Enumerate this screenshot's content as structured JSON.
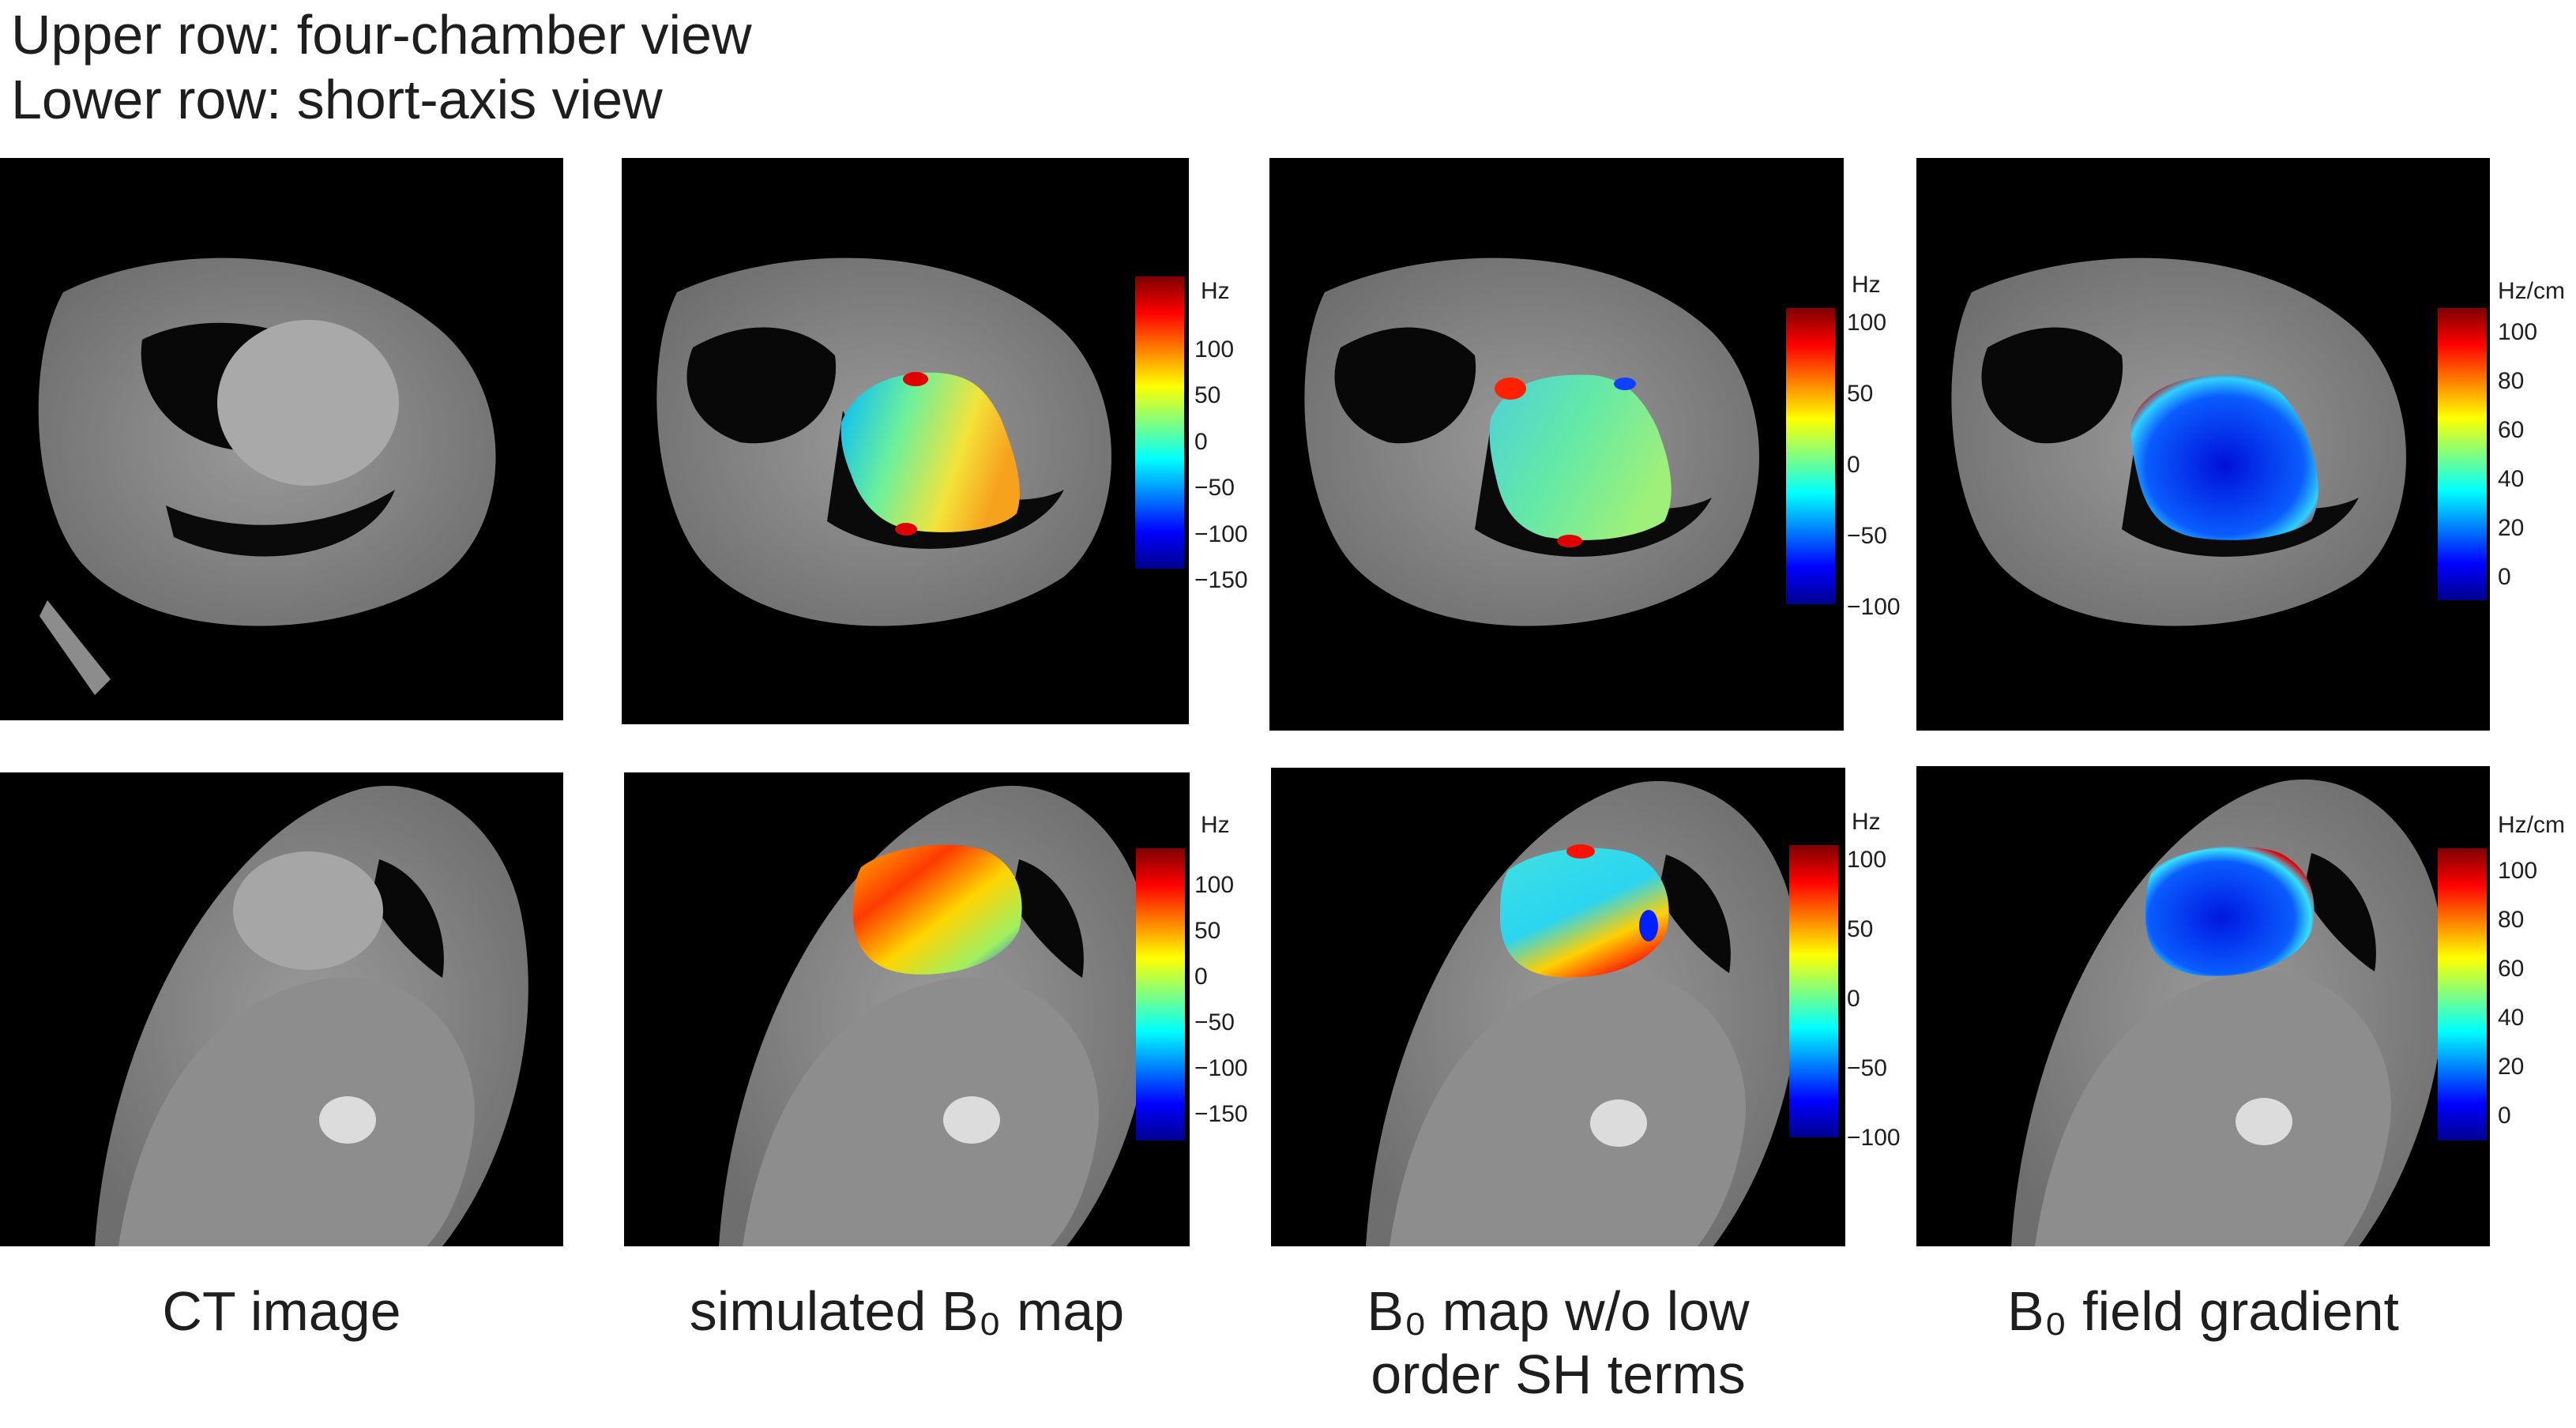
{
  "header": {
    "line1": "Upper row: four-chamber view",
    "line2": "Lower row: short-axis view"
  },
  "columns": [
    {
      "label_line1": "CT image",
      "label_line2": ""
    },
    {
      "label_line1": "simulated B₀ map",
      "label_line2": ""
    },
    {
      "label_line1": "B₀ map w/o low",
      "label_line2": "order SH terms"
    },
    {
      "label_line1": "B₀ field gradient",
      "label_line2": ""
    }
  ],
  "colorbars": {
    "simulated_top": {
      "unit": "Hz",
      "ticks": [
        "100",
        "50",
        "0",
        "−50",
        "−100",
        "−150"
      ]
    },
    "residual_top": {
      "unit": "Hz",
      "ticks": [
        "100",
        "50",
        "0",
        "−50",
        "−100"
      ]
    },
    "gradient_top": {
      "unit": "Hz/cm",
      "ticks": [
        "100",
        "80",
        "60",
        "40",
        "20",
        "0"
      ]
    },
    "simulated_bottom": {
      "unit": "Hz",
      "ticks": [
        "100",
        "50",
        "0",
        "−50",
        "−100",
        "−150"
      ]
    },
    "residual_bottom": {
      "unit": "Hz",
      "ticks": [
        "100",
        "50",
        "0",
        "−50",
        "−100"
      ]
    },
    "gradient_bottom": {
      "unit": "Hz/cm",
      "ticks": [
        "100",
        "80",
        "60",
        "40",
        "20",
        "0"
      ]
    }
  },
  "colors": {
    "jet": [
      "#7f0000",
      "#ff0000",
      "#ff8000",
      "#ffff00",
      "#80ff80",
      "#00ffff",
      "#0080ff",
      "#0000ff",
      "#00008f"
    ]
  }
}
